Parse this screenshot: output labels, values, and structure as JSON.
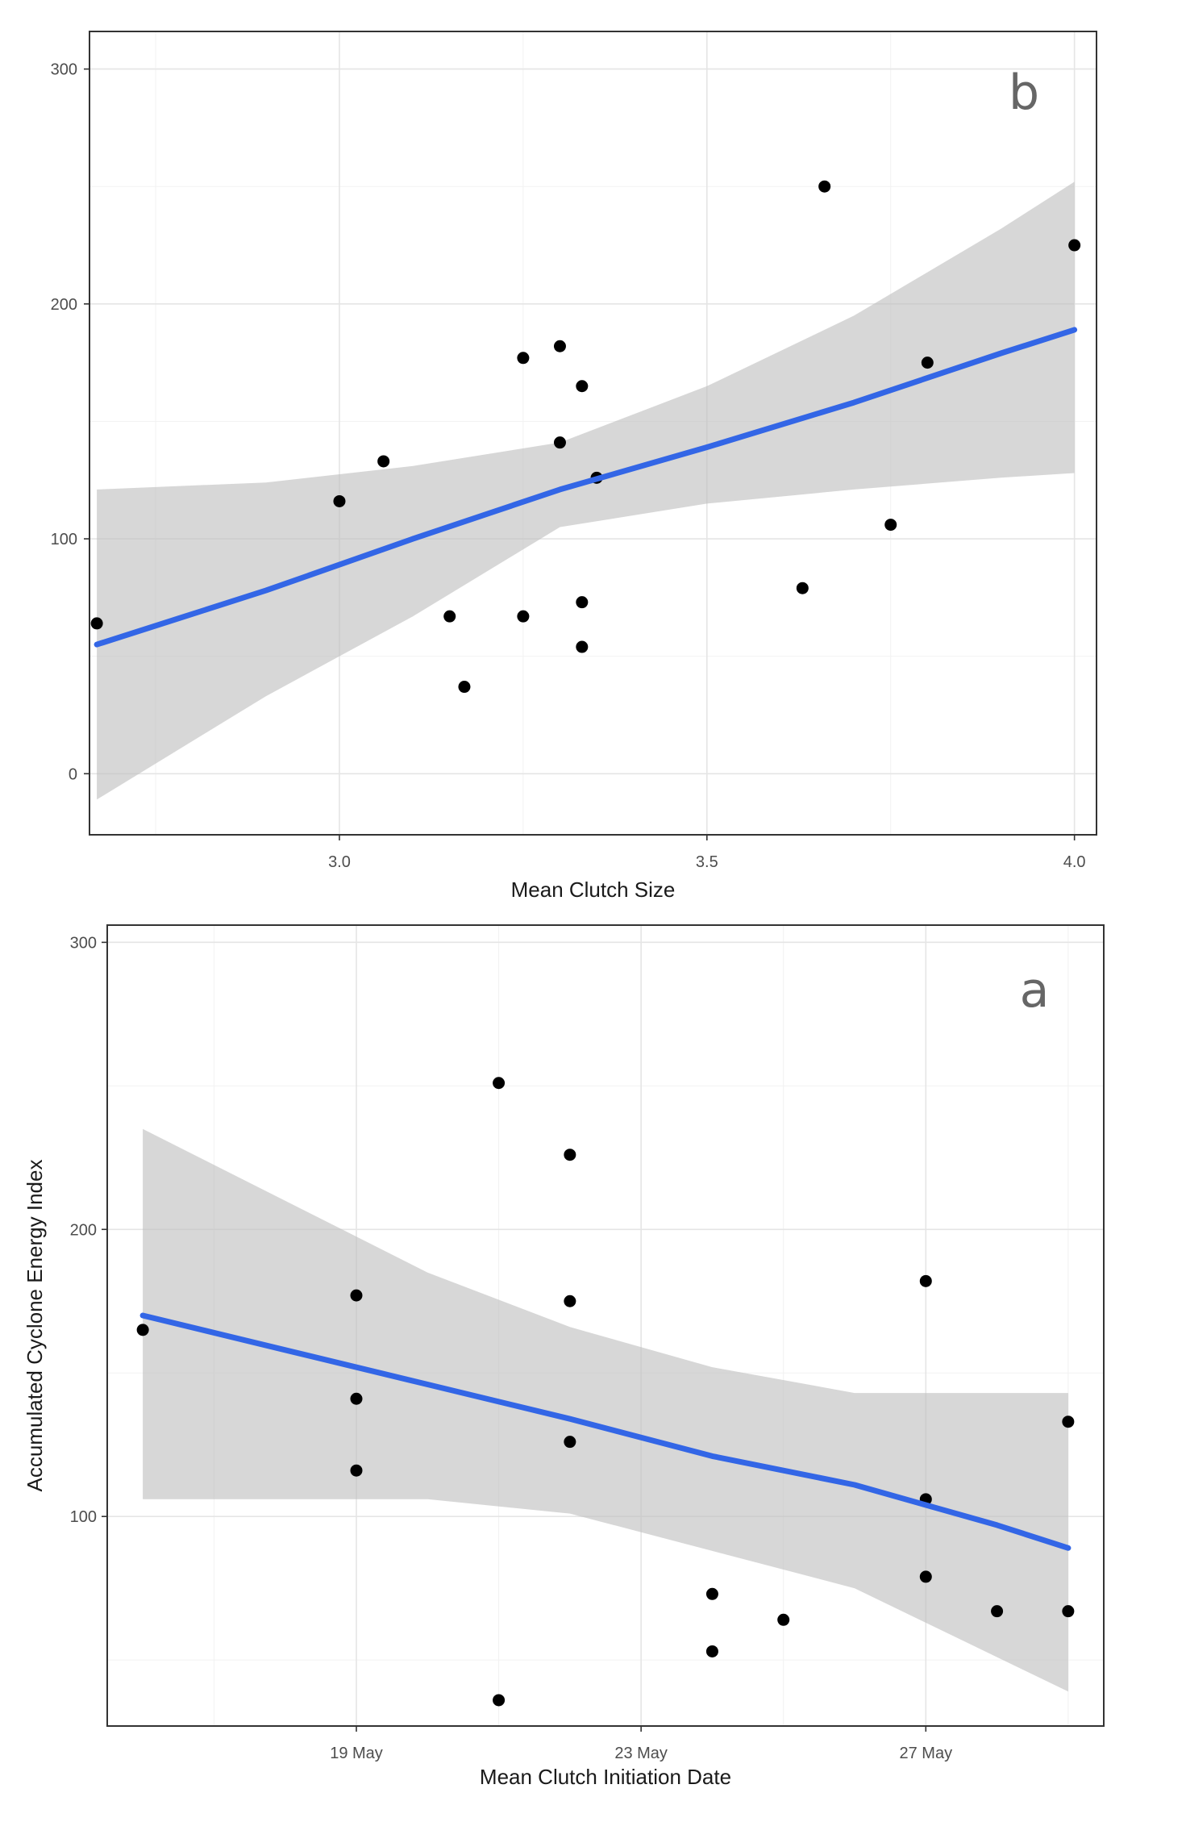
{
  "colors": {
    "fit_line": "#3366e6",
    "ribbon": "#bdbdbd",
    "points": "#000000"
  },
  "chart_data": [
    {
      "type": "scatter",
      "panel_label": "b",
      "title": "",
      "xlabel": "Mean Clutch Size",
      "ylabel": "",
      "xlim": [
        2.66,
        4.03
      ],
      "ylim": [
        -26,
        316
      ],
      "x_ticks": [
        3.0,
        3.5,
        4.0
      ],
      "x_tick_labels": [
        "3.0",
        "3.5",
        "4.0"
      ],
      "y_ticks": [
        0,
        100,
        200,
        300
      ],
      "y_tick_labels": [
        "0",
        "100",
        "200",
        "300"
      ],
      "grid": true,
      "points": [
        {
          "x": 2.67,
          "y": 64
        },
        {
          "x": 3.0,
          "y": 116
        },
        {
          "x": 3.06,
          "y": 133
        },
        {
          "x": 3.15,
          "y": 67
        },
        {
          "x": 3.17,
          "y": 37
        },
        {
          "x": 3.25,
          "y": 177
        },
        {
          "x": 3.25,
          "y": 67
        },
        {
          "x": 3.3,
          "y": 182
        },
        {
          "x": 3.3,
          "y": 141
        },
        {
          "x": 3.33,
          "y": 165
        },
        {
          "x": 3.33,
          "y": 73
        },
        {
          "x": 3.33,
          "y": 54
        },
        {
          "x": 3.35,
          "y": 126
        },
        {
          "x": 3.63,
          "y": 79
        },
        {
          "x": 3.66,
          "y": 250
        },
        {
          "x": 3.75,
          "y": 106
        },
        {
          "x": 3.8,
          "y": 175
        },
        {
          "x": 4.0,
          "y": 225
        }
      ],
      "fit": {
        "x": [
          2.67,
          2.9,
          3.1,
          3.3,
          3.5,
          3.7,
          3.9,
          4.0
        ],
        "y": [
          55,
          78,
          100,
          121,
          139,
          158,
          179,
          189
        ],
        "lower": [
          -11,
          33,
          67,
          105,
          115,
          121,
          126,
          128
        ],
        "upper": [
          121,
          124,
          131,
          141,
          165,
          195,
          232,
          252
        ]
      }
    },
    {
      "type": "scatter",
      "panel_label": "a",
      "title": "",
      "xlabel": "Mean Clutch Initiation Date",
      "ylabel": "Accumulated Cyclone Energy Index",
      "xlim": [
        "2000-05-15T12:00",
        "2000-05-29T12:00"
      ],
      "ylim": [
        27,
        306
      ],
      "x_ticks": [
        "2000-05-19",
        "2000-05-23",
        "2000-05-27"
      ],
      "x_tick_labels": [
        "19 May",
        "23 May",
        "27 May"
      ],
      "y_ticks": [
        100,
        200,
        300
      ],
      "y_tick_labels": [
        "100",
        "200",
        "300"
      ],
      "grid": true,
      "points": [
        {
          "x": "2000-05-16",
          "y": 165
        },
        {
          "x": "2000-05-19",
          "y": 177
        },
        {
          "x": "2000-05-19",
          "y": 141
        },
        {
          "x": "2000-05-19",
          "y": 116
        },
        {
          "x": "2000-05-21",
          "y": 251
        },
        {
          "x": "2000-05-21",
          "y": 36
        },
        {
          "x": "2000-05-22",
          "y": 226
        },
        {
          "x": "2000-05-22",
          "y": 175
        },
        {
          "x": "2000-05-22",
          "y": 126
        },
        {
          "x": "2000-05-24",
          "y": 73
        },
        {
          "x": "2000-05-24",
          "y": 53
        },
        {
          "x": "2000-05-25",
          "y": 64
        },
        {
          "x": "2000-05-27",
          "y": 182
        },
        {
          "x": "2000-05-27",
          "y": 106
        },
        {
          "x": "2000-05-27",
          "y": 79
        },
        {
          "x": "2000-05-28",
          "y": 67
        },
        {
          "x": "2000-05-29",
          "y": 133
        },
        {
          "x": "2000-05-29",
          "y": 67
        }
      ],
      "fit": {
        "x": [
          "2000-05-16",
          "2000-05-18",
          "2000-05-20",
          "2000-05-22",
          "2000-05-24",
          "2000-05-26",
          "2000-05-28",
          "2000-05-29"
        ],
        "y": [
          170,
          158,
          146,
          134,
          121,
          111,
          97,
          89
        ],
        "lower": [
          106,
          106,
          106,
          101,
          88,
          75,
          51,
          39
        ],
        "upper": [
          235,
          210,
          185,
          166,
          152,
          143,
          143,
          143
        ]
      }
    }
  ]
}
